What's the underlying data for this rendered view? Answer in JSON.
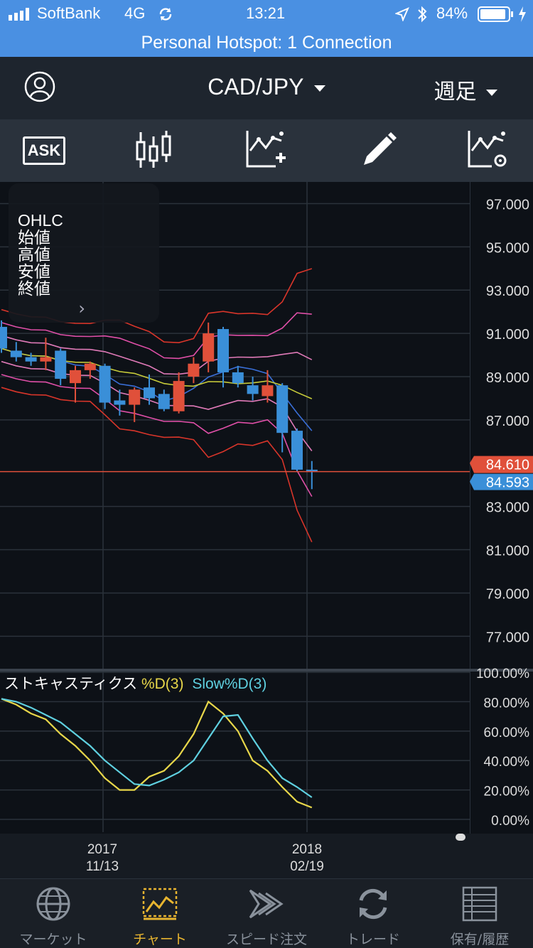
{
  "status_bar": {
    "carrier": "SoftBank",
    "network": "4G",
    "time": "13:21",
    "battery": "84%"
  },
  "hotspot_banner": "Personal Hotspot: 1 Connection",
  "header": {
    "pair": "CAD/JPY",
    "period": "週足"
  },
  "toolbar": {
    "ask_label": "ASK",
    "icons": [
      "candlestick-type-icon",
      "add-indicator-icon",
      "drawing-pencil-icon",
      "indicator-settings-icon"
    ]
  },
  "ohlc_panel": {
    "title": "OHLC",
    "open": "始値",
    "high": "高値",
    "low": "安値",
    "close": "終値"
  },
  "price_axis": {
    "ticks": [
      "97.000",
      "95.000",
      "93.000",
      "91.000",
      "89.000",
      "87.000",
      "83.000",
      "81.000",
      "79.000",
      "77.000"
    ],
    "bid_label": "84.610",
    "ask_label": "84.593",
    "bid_color": "#e0503a",
    "ask_color": "#3a8fd8"
  },
  "stochastic": {
    "name": "ストキャスティクス",
    "d_label": "%D(3)",
    "slow_label": "Slow%D(3)",
    "d_color": "#e8d74a",
    "slow_color": "#5fd0e0",
    "ticks": [
      "100.00%",
      "80.00%",
      "60.00%",
      "40.00%",
      "20.00%",
      "0.00%"
    ]
  },
  "date_axis": [
    {
      "year": "2017",
      "date": "11/13"
    },
    {
      "year": "2018",
      "date": "02/19"
    }
  ],
  "chart_data": {
    "type": "candlestick",
    "ylim": [
      75.5,
      98.0
    ],
    "candles": [
      {
        "o": 91.3,
        "h": 91.6,
        "l": 90.1,
        "c": 90.3
      },
      {
        "o": 90.2,
        "h": 90.6,
        "l": 89.7,
        "c": 89.9
      },
      {
        "o": 89.9,
        "h": 90.1,
        "l": 89.5,
        "c": 89.7
      },
      {
        "o": 89.7,
        "h": 90.8,
        "l": 89.3,
        "c": 89.9
      },
      {
        "o": 90.2,
        "h": 90.3,
        "l": 88.6,
        "c": 88.9
      },
      {
        "o": 88.7,
        "h": 89.5,
        "l": 87.8,
        "c": 89.3
      },
      {
        "o": 89.3,
        "h": 89.7,
        "l": 88.9,
        "c": 89.6
      },
      {
        "o": 89.5,
        "h": 89.6,
        "l": 87.5,
        "c": 87.8
      },
      {
        "o": 87.9,
        "h": 88.4,
        "l": 87.2,
        "c": 87.7
      },
      {
        "o": 87.7,
        "h": 88.5,
        "l": 86.9,
        "c": 88.4
      },
      {
        "o": 88.5,
        "h": 89.1,
        "l": 87.7,
        "c": 88.0
      },
      {
        "o": 88.2,
        "h": 88.4,
        "l": 87.4,
        "c": 87.5
      },
      {
        "o": 87.4,
        "h": 89.2,
        "l": 87.3,
        "c": 88.8
      },
      {
        "o": 89.0,
        "h": 89.9,
        "l": 88.7,
        "c": 89.6
      },
      {
        "o": 89.7,
        "h": 91.5,
        "l": 89.2,
        "c": 91.0
      },
      {
        "o": 91.2,
        "h": 91.3,
        "l": 88.5,
        "c": 89.2
      },
      {
        "o": 89.2,
        "h": 89.5,
        "l": 88.5,
        "c": 88.7
      },
      {
        "o": 88.6,
        "h": 89.0,
        "l": 87.9,
        "c": 88.2
      },
      {
        "o": 88.1,
        "h": 89.3,
        "l": 87.8,
        "c": 88.6
      },
      {
        "o": 88.6,
        "h": 88.7,
        "l": 85.5,
        "c": 86.4
      },
      {
        "o": 86.5,
        "h": 86.6,
        "l": 84.6,
        "c": 84.7
      },
      {
        "o": 84.7,
        "h": 85.1,
        "l": 83.8,
        "c": 84.6
      }
    ],
    "current_price": 84.61,
    "stoch_d": [
      82,
      78,
      72,
      68,
      58,
      50,
      40,
      28,
      20,
      20,
      29,
      33,
      43,
      58,
      80,
      72,
      60,
      40,
      33,
      22,
      12,
      8
    ],
    "stoch_slow": [
      82,
      80,
      76,
      71,
      66,
      58,
      50,
      40,
      32,
      24,
      23,
      27,
      32,
      40,
      55,
      70,
      71,
      55,
      40,
      28,
      22,
      15
    ]
  }
}
